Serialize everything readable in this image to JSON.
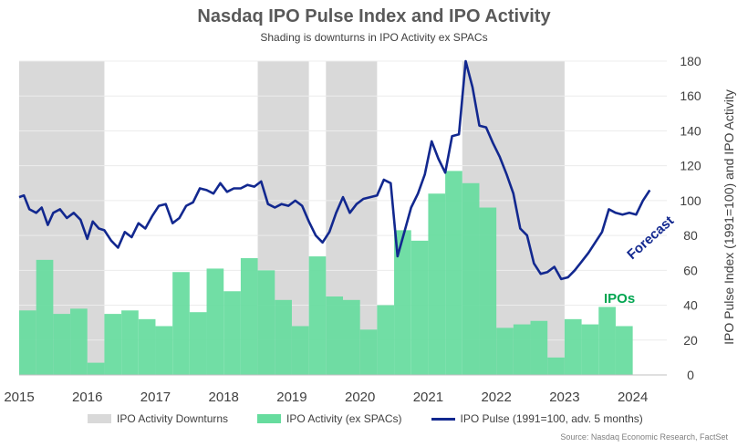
{
  "header": {
    "title": "Nasdaq IPO Pulse Index and IPO Activity",
    "subtitle": "Shading is downturns in IPO Activity ex SPACs"
  },
  "legend": {
    "downturns": "IPO Activity Downturns",
    "activity": "IPO Activity (ex SPACs)",
    "pulse": "IPO Pulse (1991=100, adv. 5 months)"
  },
  "source": "Source: Nasdaq Economic Research, FactSet",
  "annotations": {
    "forecast": "Forecast",
    "ipos": "IPOs"
  },
  "colors": {
    "shade": "#d9d9d9",
    "bars": "#66dc9e",
    "line": "#12288f",
    "ipos_label": "#00a550"
  },
  "chart_data": {
    "type": "bar+line",
    "title": "Nasdaq IPO Pulse Index and IPO Activity",
    "ylabel": "IPO Pulse Index (1991=100) and IPO Activity",
    "ylim": [
      0,
      180
    ],
    "yticks": [
      0,
      20,
      40,
      60,
      80,
      100,
      120,
      140,
      160,
      180
    ],
    "xlim": [
      2015.0,
      2024.5
    ],
    "xticks": [
      "2015",
      "2016",
      "2017",
      "2018",
      "2019",
      "2020",
      "2021",
      "2022",
      "2023",
      "2024"
    ],
    "downturns": [
      [
        2015.0,
        2016.25
      ],
      [
        2018.5,
        2019.25
      ],
      [
        2019.5,
        2020.25
      ],
      [
        2021.5,
        2023.0
      ]
    ],
    "bars": {
      "name": "IPO Activity (ex SPACs)",
      "start": 2015.0,
      "width": 0.25,
      "values": [
        37,
        66,
        35,
        38,
        7,
        35,
        37,
        32,
        28,
        59,
        36,
        61,
        48,
        67,
        60,
        43,
        28,
        68,
        45,
        43,
        26,
        40,
        83,
        77,
        104,
        117,
        110,
        96,
        27,
        29,
        31,
        10,
        32,
        29,
        39,
        28
      ]
    },
    "line": {
      "name": "IPO Pulse (1991=100, adv. 5 months)",
      "x": [
        2015.0,
        2015.07,
        2015.15,
        2015.25,
        2015.33,
        2015.42,
        2015.5,
        2015.6,
        2015.7,
        2015.8,
        2015.9,
        2016.0,
        2016.08,
        2016.17,
        2016.25,
        2016.35,
        2016.45,
        2016.55,
        2016.65,
        2016.75,
        2016.85,
        2016.95,
        2017.05,
        2017.15,
        2017.25,
        2017.35,
        2017.45,
        2017.55,
        2017.65,
        2017.75,
        2017.85,
        2017.95,
        2018.05,
        2018.15,
        2018.25,
        2018.35,
        2018.45,
        2018.55,
        2018.65,
        2018.75,
        2018.85,
        2018.95,
        2019.05,
        2019.15,
        2019.25,
        2019.35,
        2019.45,
        2019.55,
        2019.65,
        2019.75,
        2019.85,
        2019.95,
        2020.05,
        2020.15,
        2020.25,
        2020.35,
        2020.45,
        2020.55,
        2020.65,
        2020.75,
        2020.85,
        2020.95,
        2021.05,
        2021.15,
        2021.25,
        2021.35,
        2021.45,
        2021.55,
        2021.65,
        2021.75,
        2021.85,
        2021.95,
        2022.05,
        2022.15,
        2022.25,
        2022.35,
        2022.45,
        2022.55,
        2022.65,
        2022.75,
        2022.85,
        2022.95,
        2023.05,
        2023.15,
        2023.25,
        2023.35,
        2023.45,
        2023.55,
        2023.65,
        2023.75,
        2023.85,
        2023.95,
        2024.05,
        2024.15,
        2024.25
      ],
      "values": [
        102,
        103,
        95,
        93,
        96,
        86,
        93,
        95,
        90,
        93,
        89,
        78,
        88,
        84,
        83,
        77,
        73,
        82,
        79,
        87,
        84,
        91,
        97,
        98,
        87,
        90,
        97,
        99,
        107,
        106,
        104,
        110,
        105,
        107,
        107,
        109,
        108,
        111,
        98,
        96,
        98,
        97,
        100,
        97,
        88,
        80,
        76,
        82,
        93,
        102,
        93,
        98,
        101,
        102,
        103,
        112,
        110,
        68,
        82,
        96,
        104,
        115,
        134,
        124,
        116,
        137,
        138,
        180,
        165,
        143,
        142,
        133,
        125,
        115,
        104,
        84,
        80,
        64,
        58,
        59,
        62,
        55,
        56,
        60,
        65,
        70,
        76,
        82,
        95,
        93,
        92,
        93,
        92,
        100,
        106
      ]
    }
  }
}
